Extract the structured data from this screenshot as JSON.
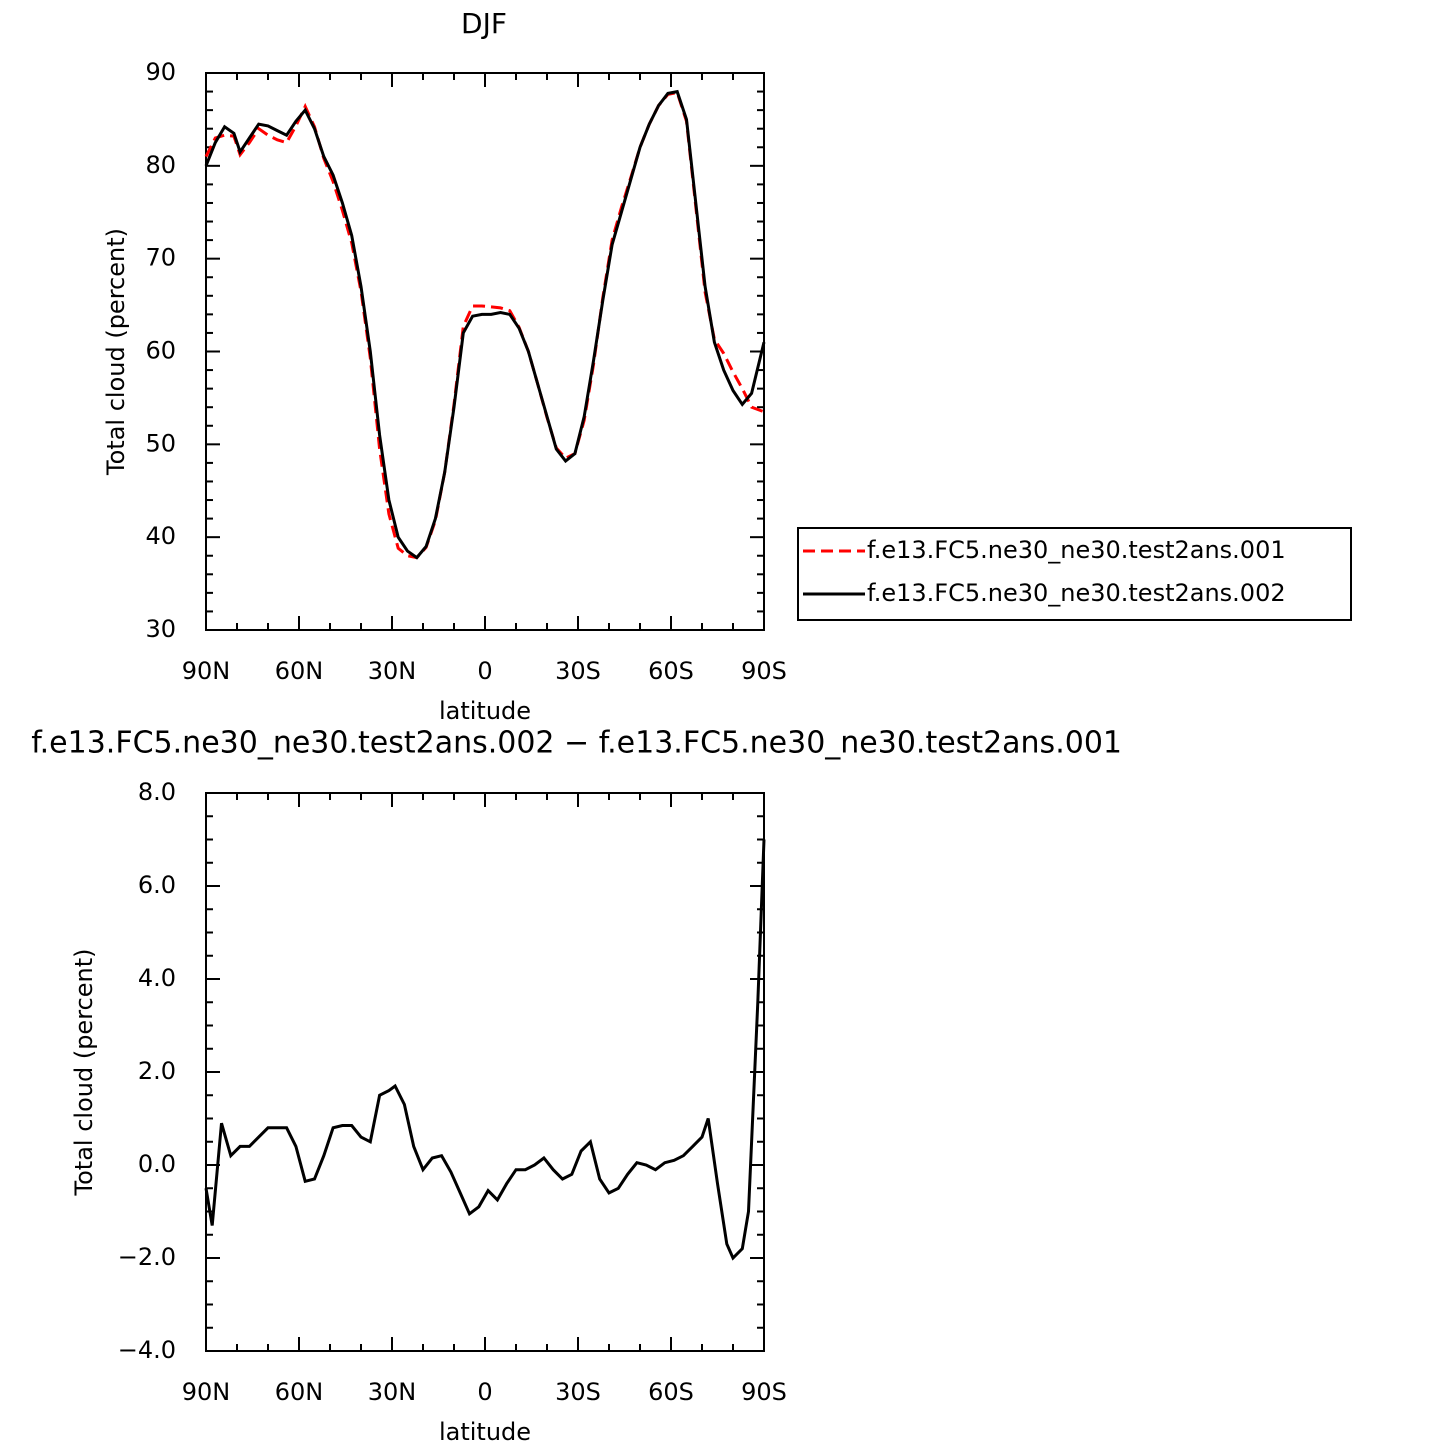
{
  "chart_data": [
    {
      "type": "line",
      "title": "DJF",
      "x_label": "latitude",
      "y_label": "Total cloud (percent)",
      "x": [
        90,
        87,
        84,
        81,
        79,
        76,
        73,
        70,
        67,
        64,
        61,
        58,
        55,
        52,
        49,
        46,
        43,
        40,
        37,
        34,
        31,
        28,
        25,
        22,
        19,
        16,
        13,
        10,
        7,
        4,
        1,
        -2,
        -5,
        -8,
        -11,
        -14,
        -17,
        -20,
        -23,
        -26,
        -29,
        -32,
        -35,
        -38,
        -41,
        -44,
        -47,
        -50,
        -53,
        -56,
        -59,
        -62,
        -65,
        -68,
        -71,
        -74,
        -77,
        -80,
        -83,
        -86,
        -90
      ],
      "series": [
        {
          "name": "f.e13.FC5.ne30_ne30.test2ans.001",
          "color": "#ff0000",
          "line_style": "dashed",
          "values": [
            81,
            83,
            83.3,
            83.2,
            81.2,
            82.5,
            84,
            83.3,
            82.8,
            82.5,
            84.3,
            86.4,
            84.2,
            80.8,
            78.3,
            75.2,
            71.7,
            66.5,
            59.3,
            49.5,
            42.5,
            38.8,
            38,
            37.8,
            38.9,
            41.8,
            47,
            54.3,
            62.7,
            64.9,
            64.9,
            64.8,
            64.7,
            64.4,
            62.6,
            60,
            56.5,
            52.9,
            49.6,
            48.5,
            49,
            52.6,
            58.6,
            65.8,
            72,
            75.5,
            78.7,
            82,
            84.5,
            86.5,
            87.7,
            87.9,
            84.8,
            75.6,
            66.4,
            61.3,
            59.8,
            57.8,
            56,
            54,
            53.5
          ]
        },
        {
          "name": "f.e13.FC5.ne30_ne30.test2ans.002",
          "color": "#000000",
          "line_style": "solid",
          "values": [
            80,
            82.5,
            84.2,
            83.5,
            81.5,
            83,
            84.5,
            84.3,
            83.8,
            83.3,
            84.8,
            86,
            84,
            81,
            79,
            76,
            72.5,
            67,
            60,
            51,
            44,
            40,
            38.5,
            37.8,
            39,
            42,
            47,
            54,
            62,
            63.8,
            64,
            64,
            64.2,
            64,
            62.5,
            60,
            56.5,
            53,
            49.5,
            48.2,
            49,
            53,
            59,
            65.5,
            71.5,
            75,
            78.5,
            82,
            84.5,
            86.5,
            87.8,
            88,
            85,
            76,
            67,
            61,
            58,
            55.8,
            54.3,
            55.5,
            61
          ]
        }
      ],
      "xlim": [
        90,
        -90
      ],
      "xticks": [
        {
          "value": 90,
          "label": "90N"
        },
        {
          "value": 60,
          "label": "60N"
        },
        {
          "value": 30,
          "label": "30N"
        },
        0,
        {
          "value": -30,
          "label": "30S"
        },
        {
          "value": -60,
          "label": "60S"
        },
        {
          "value": -90,
          "label": "90S"
        }
      ],
      "ylim": [
        30,
        90
      ],
      "yticks": [
        30,
        40,
        50,
        60,
        70,
        80,
        90
      ],
      "legend": "right"
    },
    {
      "type": "line",
      "title": "f.e13.FC5.ne30_ne30.test2ans.002 − f.e13.FC5.ne30_ne30.test2ans.001",
      "x_label": "latitude",
      "y_label": "Total cloud (percent)",
      "x": [
        90,
        88,
        85,
        82,
        79,
        76,
        73,
        70,
        67,
        64,
        61,
        58,
        55,
        52,
        49,
        46,
        43,
        40,
        37,
        34,
        31,
        29,
        26,
        23,
        20,
        17,
        14,
        11,
        8,
        5,
        2,
        -1,
        -4,
        -7,
        -10,
        -13,
        -16,
        -19,
        -22,
        -25,
        -28,
        -31,
        -34,
        -37,
        -40,
        -43,
        -46,
        -49,
        -52,
        -55,
        -58,
        -61,
        -64,
        -67,
        -70,
        -72,
        -75,
        -78,
        -80,
        -83,
        -85,
        -88,
        -90
      ],
      "values": [
        -0.5,
        -1.3,
        0.9,
        0.2,
        0.4,
        0.4,
        0.6,
        0.8,
        0.8,
        0.8,
        0.4,
        -0.35,
        -0.3,
        0.2,
        0.8,
        0.85,
        0.85,
        0.6,
        0.5,
        1.5,
        1.6,
        1.7,
        1.3,
        0.4,
        -0.1,
        0.15,
        0.2,
        -0.15,
        -0.6,
        -1.05,
        -0.9,
        -0.55,
        -0.75,
        -0.4,
        -0.1,
        -0.1,
        0,
        0.15,
        -0.1,
        -0.3,
        -0.2,
        0.3,
        0.5,
        -0.3,
        -0.6,
        -0.5,
        -0.2,
        0.05,
        0,
        -0.1,
        0.05,
        0.1,
        0.2,
        0.4,
        0.6,
        1.0,
        -0.4,
        -1.7,
        -2.0,
        -1.8,
        -1.0,
        3.5,
        7.0
      ],
      "color": "#000000",
      "xlim": [
        90,
        -90
      ],
      "xticks": [
        {
          "value": 90,
          "label": "90N"
        },
        {
          "value": 60,
          "label": "60N"
        },
        {
          "value": 30,
          "label": "30N"
        },
        0,
        {
          "value": -30,
          "label": "30S"
        },
        {
          "value": -60,
          "label": "60S"
        },
        {
          "value": -90,
          "label": "90S"
        }
      ],
      "ylim": [
        -4,
        8
      ],
      "yticks": [
        {
          "value": -4,
          "label": "−4.0"
        },
        {
          "value": -2,
          "label": "−2.0"
        },
        {
          "value": 0,
          "label": "0.0"
        },
        {
          "value": 2,
          "label": "2.0"
        },
        {
          "value": 4,
          "label": "4.0"
        },
        {
          "value": 6,
          "label": "6.0"
        },
        {
          "value": 8,
          "label": "8.0"
        }
      ]
    }
  ]
}
